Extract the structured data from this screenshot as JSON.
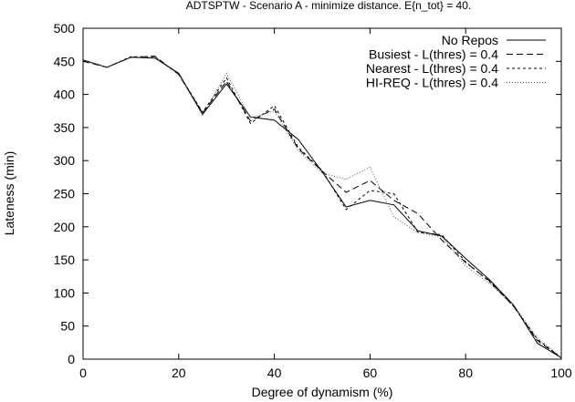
{
  "chart_data": {
    "type": "line",
    "title": "ADTSPTW - Scenario A - minimize distance. E{n_tot} = 40.",
    "xlabel": "Degree of dynamism (%)",
    "ylabel": "Lateness (min)",
    "xlim": [
      0,
      100
    ],
    "ylim": [
      0,
      500
    ],
    "xticks": [
      0,
      20,
      40,
      60,
      80,
      100
    ],
    "yticks": [
      0,
      50,
      100,
      150,
      200,
      250,
      300,
      350,
      400,
      450,
      500
    ],
    "grid": false,
    "legend_position": "top-right",
    "x": [
      0,
      5,
      10,
      15,
      20,
      25,
      30,
      35,
      40,
      45,
      50,
      55,
      60,
      65,
      70,
      75,
      80,
      85,
      90,
      95,
      100
    ],
    "series": [
      {
        "name": "No Repos",
        "dash": "solid",
        "values": [
          452,
          441,
          456,
          455,
          432,
          370,
          416,
          366,
          361,
          332,
          283,
          230,
          240,
          233,
          194,
          186,
          152,
          120,
          82,
          24,
          2
        ]
      },
      {
        "name": "Busiest - L(thres) = 0.4",
        "dash": "dashed",
        "values": [
          450,
          441,
          456,
          458,
          430,
          372,
          420,
          360,
          378,
          318,
          284,
          252,
          270,
          240,
          220,
          180,
          146,
          118,
          80,
          28,
          2
        ]
      },
      {
        "name": "Nearest - L(thres) = 0.4",
        "dash": "dotted",
        "values": [
          452,
          441,
          457,
          457,
          431,
          373,
          425,
          356,
          383,
          320,
          285,
          226,
          255,
          250,
          192,
          188,
          147,
          117,
          80,
          30,
          2
        ]
      },
      {
        "name": "HI-REQ - L(thres) = 0.4",
        "dash": "fine-dotted",
        "values": [
          451,
          441,
          456,
          456,
          430,
          368,
          432,
          365,
          375,
          315,
          281,
          272,
          290,
          215,
          191,
          185,
          141,
          114,
          82,
          32,
          3
        ]
      }
    ]
  }
}
